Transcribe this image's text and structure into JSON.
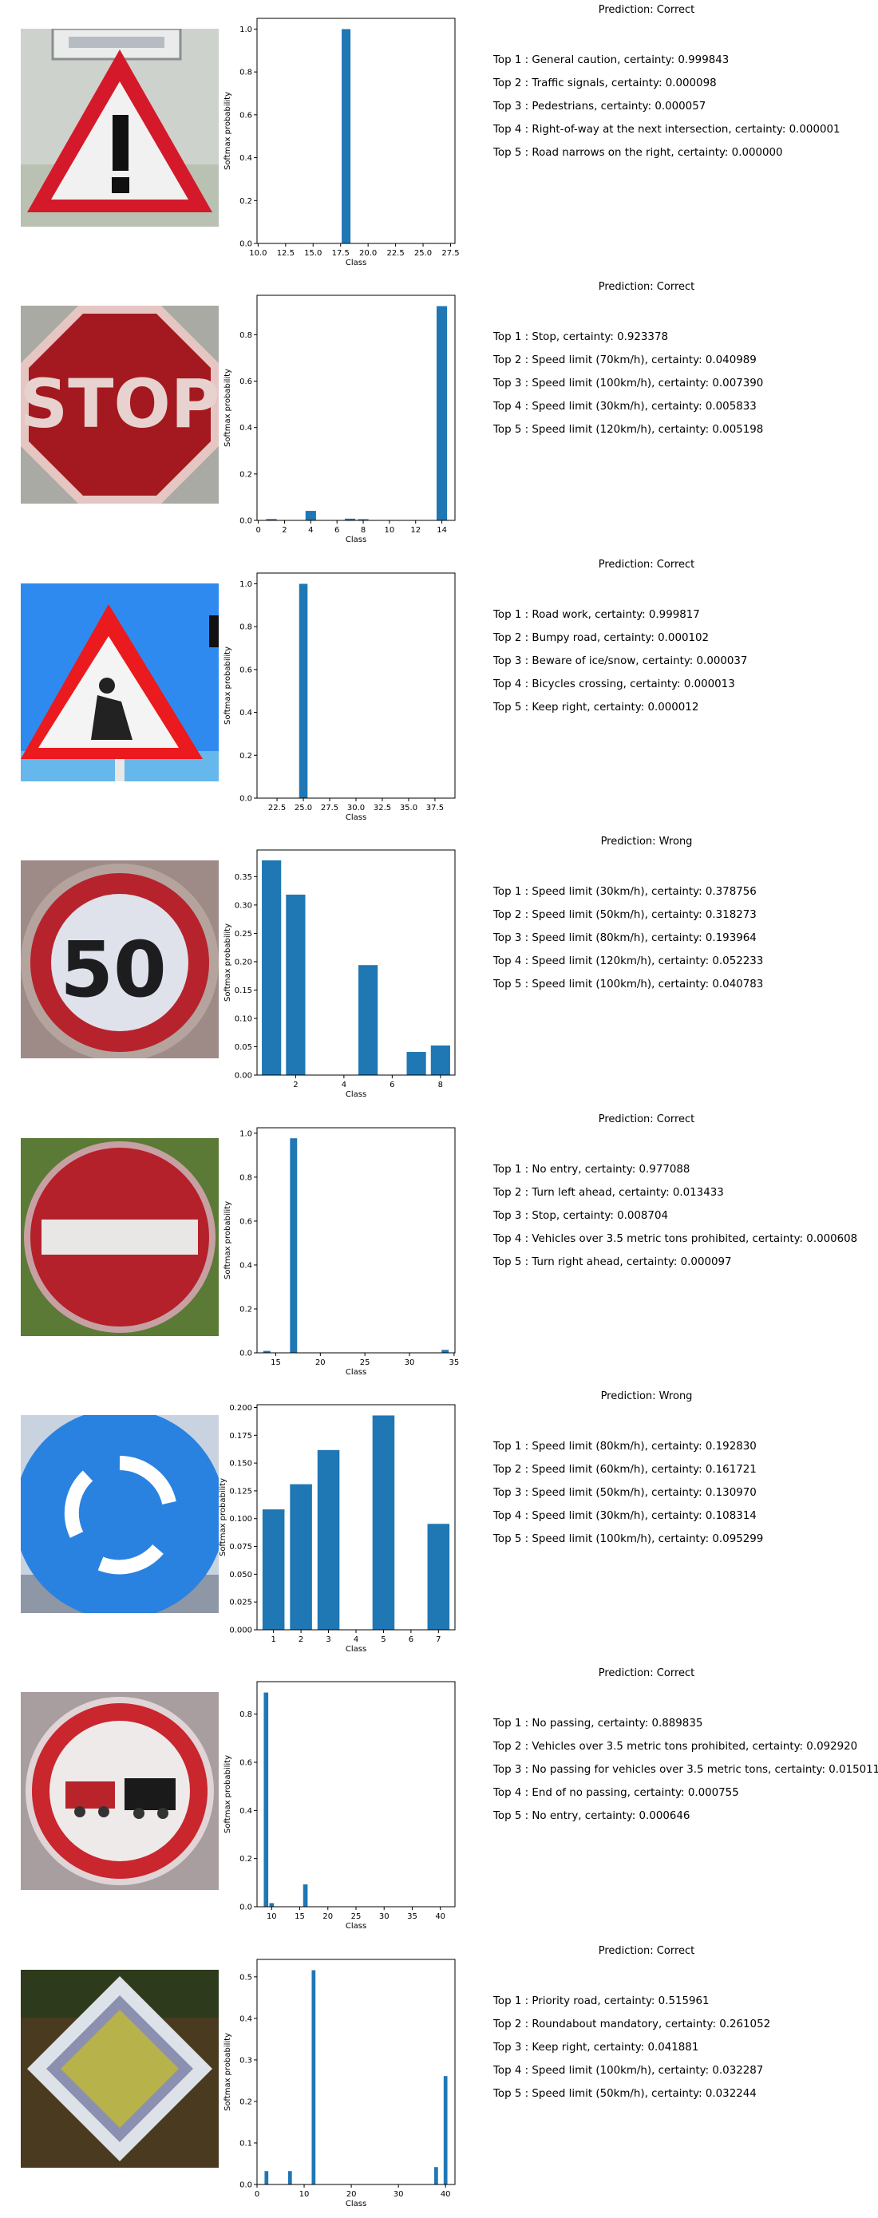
{
  "colors": {
    "bar": "#1f77b4",
    "axis": "#000000"
  },
  "rows": [
    {
      "sign_icon": "general-caution-sign",
      "title": "Prediction: Correct",
      "top5": [
        "Top 1 : General caution, certainty: 0.999843",
        "Top 2 : Traffic signals, certainty: 0.000098",
        "Top 3 : Pedestrians, certainty: 0.000057",
        "Top 4 : Right-of-way at the next intersection, certainty: 0.000001",
        "Top 5 : Road narrows on the right, certainty: 0.000000"
      ]
    },
    {
      "sign_icon": "stop-sign",
      "title": "Prediction: Correct",
      "top5": [
        "Top 1 : Stop, certainty: 0.923378",
        "Top 2 : Speed limit (70km/h), certainty: 0.040989",
        "Top 3 : Speed limit (100km/h), certainty: 0.007390",
        "Top 4 : Speed limit (30km/h), certainty: 0.005833",
        "Top 5 : Speed limit (120km/h), certainty: 0.005198"
      ]
    },
    {
      "sign_icon": "road-work-sign",
      "title": "Prediction: Correct",
      "top5": [
        "Top 1 : Road work, certainty: 0.999817",
        "Top 2 : Bumpy road, certainty: 0.000102",
        "Top 3 : Beware of ice/snow, certainty: 0.000037",
        "Top 4 : Bicycles crossing, certainty: 0.000013",
        "Top 5 : Keep right, certainty: 0.000012"
      ]
    },
    {
      "sign_icon": "speed-limit-50-sign",
      "title": "Prediction: Wrong",
      "top5": [
        "Top 1 : Speed limit (30km/h), certainty: 0.378756",
        "Top 2 : Speed limit (50km/h), certainty: 0.318273",
        "Top 3 : Speed limit (80km/h), certainty: 0.193964",
        "Top 4 : Speed limit (120km/h), certainty: 0.052233",
        "Top 5 : Speed limit (100km/h), certainty: 0.040783"
      ]
    },
    {
      "sign_icon": "no-entry-sign",
      "title": "Prediction: Correct",
      "top5": [
        "Top 1 : No entry, certainty: 0.977088",
        "Top 2 : Turn left ahead, certainty: 0.013433",
        "Top 3 : Stop, certainty: 0.008704",
        "Top 4 : Vehicles over 3.5 metric tons prohibited, certainty: 0.000608",
        "Top 5 : Turn right ahead, certainty: 0.000097"
      ]
    },
    {
      "sign_icon": "roundabout-sign",
      "title": "Prediction: Wrong",
      "top5": [
        "Top 1 : Speed limit (80km/h), certainty: 0.192830",
        "Top 2 : Speed limit (60km/h), certainty: 0.161721",
        "Top 3 : Speed limit (50km/h), certainty: 0.130970",
        "Top 4 : Speed limit (30km/h), certainty: 0.108314",
        "Top 5 : Speed limit (100km/h), certainty: 0.095299"
      ]
    },
    {
      "sign_icon": "no-passing-sign",
      "title": "Prediction: Correct",
      "top5": [
        "Top 1 : No passing, certainty: 0.889835",
        "Top 2 : Vehicles over 3.5 metric tons prohibited, certainty: 0.092920",
        "Top 3 : No passing for vehicles over 3.5 metric tons, certainty: 0.015011",
        "Top 4 : End of no passing, certainty: 0.000755",
        "Top 5 : No entry, certainty: 0.000646"
      ]
    },
    {
      "sign_icon": "priority-road-sign",
      "title": "Prediction: Correct",
      "top5": [
        "Top 1 : Priority road, certainty: 0.515961",
        "Top 2 : Roundabout mandatory, certainty: 0.261052",
        "Top 3 : Keep right, certainty: 0.041881",
        "Top 4 : Speed limit (100km/h), certainty: 0.032287",
        "Top 5 : Speed limit (50km/h), certainty: 0.032244"
      ]
    }
  ],
  "chart_data": [
    {
      "type": "bar",
      "xlabel": "Class",
      "ylabel": "Softmax probability",
      "x": [
        18,
        26,
        27,
        11,
        24
      ],
      "values": [
        0.999843,
        9.8e-05,
        5.7e-05,
        1e-06,
        0.0
      ],
      "xlim": [
        9.9,
        27.9
      ],
      "ylim": [
        0,
        1.05
      ],
      "xticks": [
        10.0,
        12.5,
        15.0,
        17.5,
        20.0,
        22.5,
        25.0,
        27.5
      ],
      "xtick_labels": [
        "10.0",
        "12.5",
        "15.0",
        "17.5",
        "20.0",
        "22.5",
        "25.0",
        "27.5"
      ],
      "yticks": [
        0,
        0.2,
        0.4,
        0.6,
        0.8,
        1.0
      ],
      "ytick_labels": [
        "0.0",
        "0.2",
        "0.4",
        "0.6",
        "0.8",
        "1.0"
      ]
    },
    {
      "type": "bar",
      "xlabel": "Class",
      "ylabel": "Softmax probability",
      "x": [
        14,
        4,
        7,
        1,
        8
      ],
      "values": [
        0.923378,
        0.040989,
        0.00739,
        0.005833,
        0.005198
      ],
      "xlim": [
        -0.1,
        15.0
      ],
      "ylim": [
        0,
        0.97
      ],
      "xticks": [
        0,
        2,
        4,
        6,
        8,
        10,
        12,
        14
      ],
      "xtick_labels": [
        "0",
        "2",
        "4",
        "6",
        "8",
        "10",
        "12",
        "14"
      ],
      "yticks": [
        0,
        0.2,
        0.4,
        0.6,
        0.8
      ],
      "ytick_labels": [
        "0.0",
        "0.2",
        "0.4",
        "0.6",
        "0.8"
      ]
    },
    {
      "type": "bar",
      "xlabel": "Class",
      "ylabel": "Softmax probability",
      "x": [
        25,
        22,
        30,
        29,
        38
      ],
      "values": [
        0.999817,
        0.000102,
        3.7e-05,
        1.3e-05,
        1.2e-05
      ],
      "xlim": [
        20.6,
        39.4
      ],
      "ylim": [
        0,
        1.05
      ],
      "xticks": [
        22.5,
        25.0,
        27.5,
        30.0,
        32.5,
        35.0,
        37.5
      ],
      "xtick_labels": [
        "22.5",
        "25.0",
        "27.5",
        "30.0",
        "32.5",
        "35.0",
        "37.5"
      ],
      "yticks": [
        0,
        0.2,
        0.4,
        0.6,
        0.8,
        1.0
      ],
      "ytick_labels": [
        "0.0",
        "0.2",
        "0.4",
        "0.6",
        "0.8",
        "1.0"
      ]
    },
    {
      "type": "bar",
      "xlabel": "Class",
      "ylabel": "Softmax probability",
      "x": [
        1,
        2,
        5,
        8,
        7
      ],
      "values": [
        0.378756,
        0.318273,
        0.193964,
        0.052233,
        0.040783
      ],
      "xlim": [
        0.4,
        8.6
      ],
      "ylim": [
        0,
        0.397
      ],
      "xticks": [
        2,
        4,
        6,
        8
      ],
      "xtick_labels": [
        "2",
        "4",
        "6",
        "8"
      ],
      "yticks": [
        0,
        0.05,
        0.1,
        0.15,
        0.2,
        0.25,
        0.3,
        0.35
      ],
      "ytick_labels": [
        "0.00",
        "0.05",
        "0.10",
        "0.15",
        "0.20",
        "0.25",
        "0.30",
        "0.35"
      ]
    },
    {
      "type": "bar",
      "xlabel": "Class",
      "ylabel": "Softmax probability",
      "x": [
        17,
        34,
        14,
        16,
        33
      ],
      "values": [
        0.977088,
        0.013433,
        0.008704,
        0.000608,
        9.7e-05
      ],
      "xlim": [
        12.9,
        35.1
      ],
      "ylim": [
        0,
        1.025
      ],
      "xticks": [
        15,
        20,
        25,
        30,
        35
      ],
      "xtick_labels": [
        "15",
        "20",
        "25",
        "30",
        "35"
      ],
      "yticks": [
        0,
        0.2,
        0.4,
        0.6,
        0.8,
        1.0
      ],
      "ytick_labels": [
        "0.0",
        "0.2",
        "0.4",
        "0.6",
        "0.8",
        "1.0"
      ]
    },
    {
      "type": "bar",
      "xlabel": "Class",
      "ylabel": "Softmax probability",
      "x": [
        5,
        3,
        2,
        1,
        7
      ],
      "values": [
        0.19283,
        0.161721,
        0.13097,
        0.108314,
        0.095299
      ],
      "xlim": [
        0.4,
        7.6
      ],
      "ylim": [
        0,
        0.2025
      ],
      "xticks": [
        1,
        2,
        3,
        4,
        5,
        6,
        7
      ],
      "xtick_labels": [
        "1",
        "2",
        "3",
        "4",
        "5",
        "6",
        "7"
      ],
      "yticks": [
        0,
        0.025,
        0.05,
        0.075,
        0.1,
        0.125,
        0.15,
        0.175,
        0.2
      ],
      "ytick_labels": [
        "0.000",
        "0.025",
        "0.050",
        "0.075",
        "0.100",
        "0.125",
        "0.150",
        "0.175",
        "0.200"
      ]
    },
    {
      "type": "bar",
      "xlabel": "Class",
      "ylabel": "Softmax probability",
      "x": [
        9,
        16,
        10,
        41,
        17
      ],
      "values": [
        0.889835,
        0.09292,
        0.015011,
        0.000755,
        0.000646
      ],
      "xlim": [
        7.4,
        42.6
      ],
      "ylim": [
        0,
        0.935
      ],
      "xticks": [
        10,
        15,
        20,
        25,
        30,
        35,
        40
      ],
      "xtick_labels": [
        "10",
        "15",
        "20",
        "25",
        "30",
        "35",
        "40"
      ],
      "yticks": [
        0,
        0.2,
        0.4,
        0.6,
        0.8
      ],
      "ytick_labels": [
        "0.0",
        "0.2",
        "0.4",
        "0.6",
        "0.8"
      ]
    },
    {
      "type": "bar",
      "xlabel": "Class",
      "ylabel": "Softmax probability",
      "x": [
        12,
        40,
        38,
        7,
        2
      ],
      "values": [
        0.515961,
        0.261052,
        0.041881,
        0.032287,
        0.032244
      ],
      "xlim": [
        0.0,
        42.0
      ],
      "ylim": [
        0,
        0.542
      ],
      "xticks": [
        0,
        10,
        20,
        30,
        40
      ],
      "xtick_labels": [
        "0",
        "10",
        "20",
        "30",
        "40"
      ],
      "yticks": [
        0,
        0.1,
        0.2,
        0.3,
        0.4,
        0.5
      ],
      "ytick_labels": [
        "0.0",
        "0.1",
        "0.2",
        "0.3",
        "0.4",
        "0.5"
      ]
    }
  ]
}
